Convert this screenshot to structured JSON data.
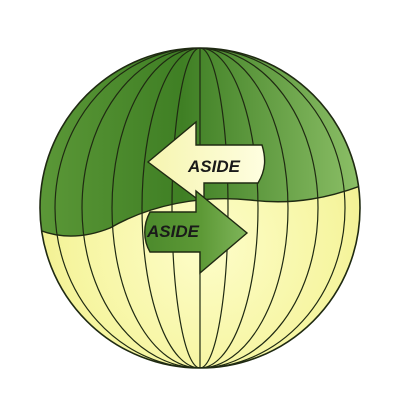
{
  "colors": {
    "green_dark": "#4e8e2e",
    "green_light": "#8fc46a",
    "yellow_light": "#fbfbb8",
    "yellow_mid": "#f1f08c",
    "outline": "#1f2a12",
    "text": "#1a1a1a"
  },
  "arrows": {
    "upper": {
      "label": "ASIDE",
      "direction": "left"
    },
    "lower": {
      "label": "ASIDE",
      "direction": "right"
    }
  }
}
